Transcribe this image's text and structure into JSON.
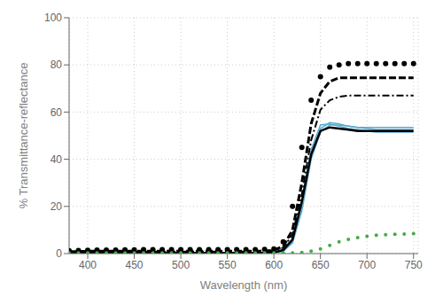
{
  "chart_data": {
    "type": "line",
    "x": [
      380,
      390,
      400,
      410,
      420,
      430,
      440,
      450,
      460,
      470,
      480,
      490,
      500,
      510,
      520,
      530,
      540,
      550,
      560,
      570,
      580,
      590,
      600,
      610,
      620,
      630,
      640,
      650,
      660,
      670,
      680,
      690,
      700,
      710,
      720,
      730,
      740,
      750
    ],
    "series": [
      {
        "type": "scatter",
        "marker": "circle",
        "color": "#000000",
        "values": [
          1.2,
          1.3,
          1.4,
          1.5,
          1.5,
          1.5,
          1.6,
          1.6,
          1.7,
          1.7,
          1.7,
          1.7,
          1.7,
          1.7,
          1.7,
          1.7,
          1.7,
          1.7,
          1.7,
          1.7,
          1.7,
          1.8,
          2.0,
          5.0,
          20.0,
          45.0,
          65.0,
          75.0,
          79.0,
          80.0,
          80.5,
          80.5,
          80.5,
          80.5,
          80.5,
          80.5,
          80.5,
          80.5
        ]
      },
      {
        "type": "line",
        "line_style": "dashed",
        "color": "#000000",
        "values": [
          0.8,
          0.9,
          1.0,
          1.0,
          1.0,
          1.0,
          1.0,
          1.0,
          1.0,
          1.0,
          1.0,
          1.0,
          1.0,
          1.0,
          1.0,
          1.0,
          1.0,
          1.0,
          1.0,
          1.0,
          1.0,
          1.0,
          1.5,
          3.0,
          10.0,
          30.0,
          55.0,
          68.0,
          73.0,
          74.5,
          74.5,
          74.5,
          74.5,
          74.5,
          74.5,
          74.5,
          74.5,
          74.5
        ]
      },
      {
        "type": "line",
        "line_style": "dashdot",
        "color": "#000000",
        "values": [
          0.7,
          0.8,
          0.8,
          0.8,
          0.8,
          0.8,
          0.8,
          0.8,
          0.8,
          0.8,
          0.8,
          0.8,
          0.8,
          0.8,
          0.8,
          0.8,
          0.8,
          0.8,
          0.8,
          0.8,
          0.8,
          0.8,
          1.2,
          2.5,
          8.0,
          25.0,
          48.0,
          61.0,
          65.0,
          66.5,
          67.0,
          67.0,
          67.0,
          67.0,
          67.0,
          67.0,
          67.0,
          67.0
        ]
      },
      {
        "type": "line",
        "line_style": "solid",
        "color": "#5aaad0",
        "values": [
          0.3,
          0.3,
          0.3,
          0.3,
          0.3,
          0.3,
          0.3,
          0.3,
          0.3,
          0.3,
          0.3,
          0.3,
          0.3,
          0.3,
          0.3,
          0.3,
          0.3,
          0.3,
          0.3,
          0.3,
          0.3,
          0.3,
          0.5,
          1.0,
          5.0,
          20.0,
          42.0,
          53.0,
          55.5,
          55.0,
          54.0,
          53.5,
          53.0,
          52.5,
          52.5,
          52.5,
          52.5,
          52.5
        ]
      },
      {
        "type": "line",
        "line_style": "solid",
        "color": "#5aaad0",
        "values": [
          0.3,
          0.3,
          0.3,
          0.3,
          0.3,
          0.3,
          0.3,
          0.3,
          0.3,
          0.3,
          0.3,
          0.3,
          0.3,
          0.3,
          0.3,
          0.3,
          0.3,
          0.3,
          0.3,
          0.3,
          0.3,
          0.3,
          0.5,
          1.0,
          5.5,
          22.0,
          44.0,
          54.5,
          55.0,
          54.0,
          53.0,
          52.5,
          52.0,
          51.5,
          51.5,
          51.5,
          51.5,
          51.5
        ]
      },
      {
        "type": "line",
        "line_style": "solid",
        "color": "#5aaad0",
        "values": [
          0.3,
          0.3,
          0.3,
          0.3,
          0.3,
          0.3,
          0.3,
          0.3,
          0.3,
          0.3,
          0.3,
          0.3,
          0.3,
          0.3,
          0.3,
          0.3,
          0.3,
          0.3,
          0.3,
          0.3,
          0.3,
          0.3,
          0.5,
          1.0,
          4.5,
          18.0,
          40.0,
          51.5,
          54.5,
          54.5,
          54.0,
          53.5,
          53.5,
          53.5,
          53.5,
          53.5,
          53.5,
          53.5
        ]
      },
      {
        "type": "line",
        "line_style": "solid",
        "color": "#000000",
        "values": [
          0.3,
          0.3,
          0.3,
          0.3,
          0.3,
          0.3,
          0.3,
          0.3,
          0.3,
          0.3,
          0.3,
          0.3,
          0.3,
          0.3,
          0.3,
          0.3,
          0.3,
          0.3,
          0.3,
          0.3,
          0.3,
          0.3,
          0.5,
          1.5,
          6.0,
          22.0,
          42.0,
          52.0,
          53.5,
          53.0,
          52.5,
          52.0,
          52.0,
          52.0,
          52.0,
          52.0,
          52.0,
          52.0
        ]
      },
      {
        "type": "scatter",
        "marker": "circle",
        "color": "#44aa44",
        "values": [
          0.3,
          0.3,
          0.3,
          0.3,
          0.3,
          0.3,
          0.3,
          0.3,
          0.3,
          0.3,
          0.3,
          0.3,
          0.3,
          0.3,
          0.3,
          0.3,
          0.3,
          0.3,
          0.3,
          0.3,
          0.3,
          0.3,
          0.3,
          0.3,
          0.3,
          0.5,
          1.0,
          2.0,
          3.5,
          5.0,
          6.0,
          6.8,
          7.3,
          7.8,
          8.0,
          8.2,
          8.3,
          8.5
        ]
      }
    ],
    "xlim": [
      380,
      755
    ],
    "ylim": [
      0,
      100
    ],
    "xticks": [
      400,
      450,
      500,
      550,
      600,
      650,
      700,
      750
    ],
    "yticks": [
      0,
      20,
      40,
      60,
      80,
      100
    ],
    "xlabel": "Wavelength (nm)",
    "ylabel": "% Transmittance-reflectance",
    "grid": true
  }
}
